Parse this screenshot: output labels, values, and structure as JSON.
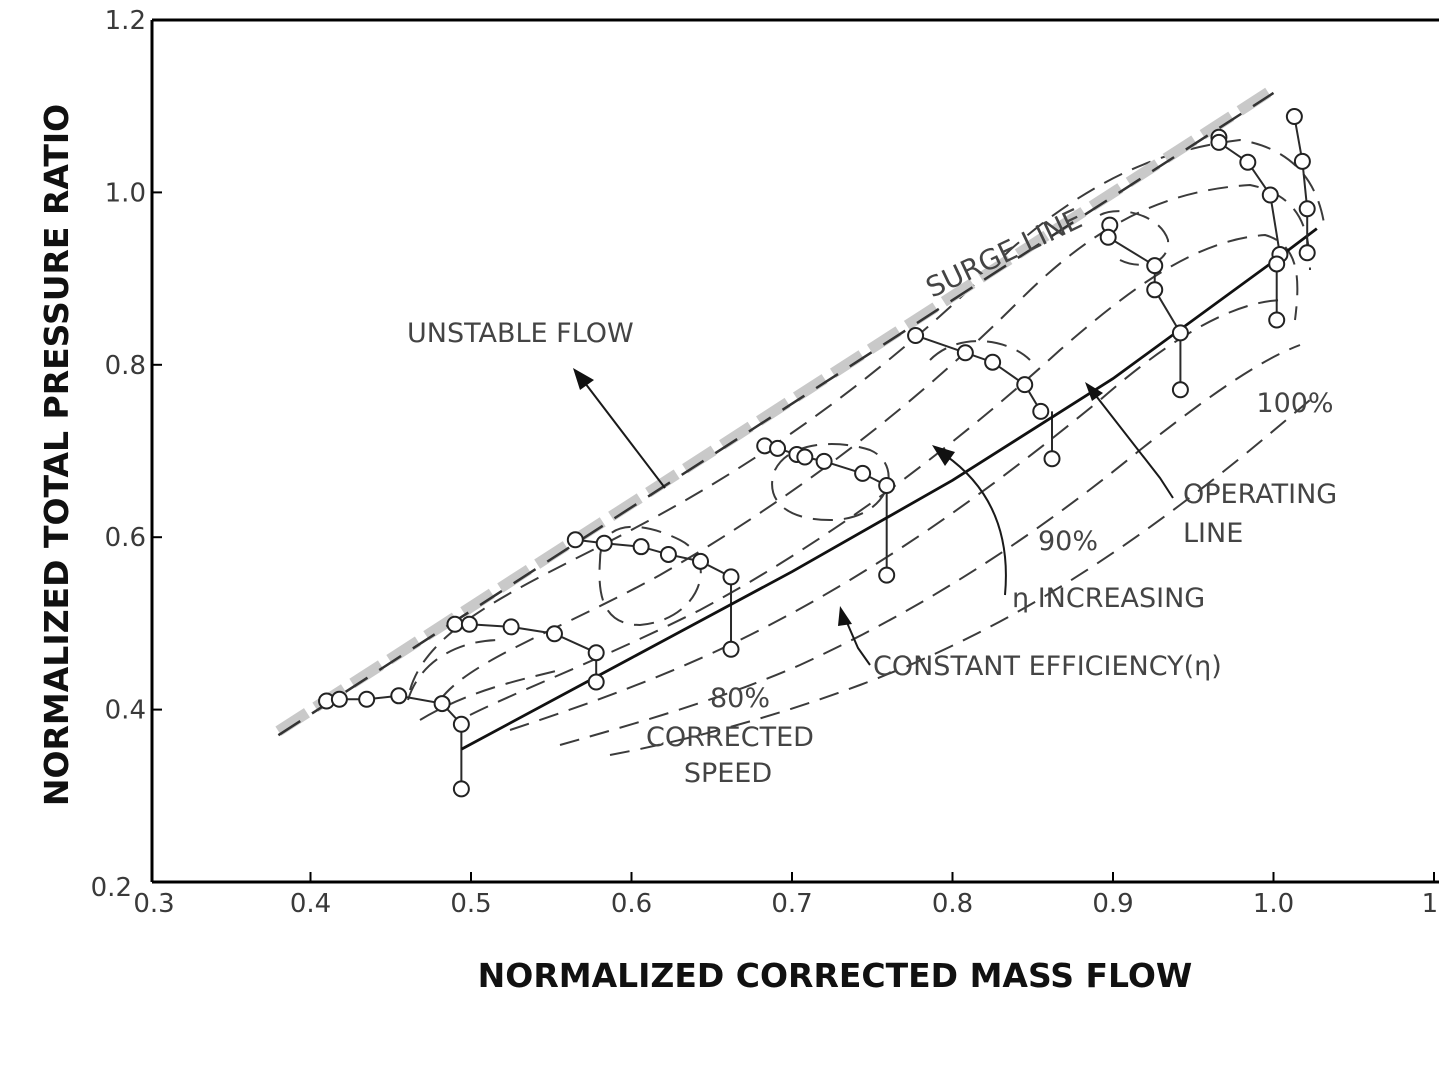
{
  "chart_data": {
    "type": "line",
    "title": "",
    "xlabel": "NORMALIZED CORRECTED MASS FLOW",
    "ylabel": "NORMALIZED TOTAL PRESSURE RATIO",
    "xlim": [
      0.3,
      1.1
    ],
    "ylim": [
      0.2,
      1.2
    ],
    "x_ticks": [
      {
        "value": 0.3,
        "label": "0.3"
      },
      {
        "value": 0.4,
        "label": "0.4"
      },
      {
        "value": 0.5,
        "label": "0.5"
      },
      {
        "value": 0.6,
        "label": "0.6"
      },
      {
        "value": 0.7,
        "label": "0.7"
      },
      {
        "value": 0.8,
        "label": "0.8"
      },
      {
        "value": 0.9,
        "label": "0.9"
      },
      {
        "value": 1.0,
        "label": "1.0"
      },
      {
        "value": 1.1,
        "label": "1."
      }
    ],
    "y_ticks": [
      {
        "value": 0.2,
        "label": "0.2"
      },
      {
        "value": 0.4,
        "label": "0.4"
      },
      {
        "value": 0.6,
        "label": "0.6"
      },
      {
        "value": 0.8,
        "label": "0.8"
      },
      {
        "value": 1.0,
        "label": "1.0"
      },
      {
        "value": 1.2,
        "label": "1.2"
      }
    ],
    "grid": false,
    "series": [
      {
        "type": "speed-line",
        "points": [
          [
            0.41,
            0.41
          ],
          [
            0.418,
            0.412
          ],
          [
            0.435,
            0.412
          ],
          [
            0.455,
            0.416
          ],
          [
            0.482,
            0.407
          ],
          [
            0.494,
            0.383
          ]
        ]
      },
      {
        "type": "speed-line",
        "points": [
          [
            0.49,
            0.499
          ],
          [
            0.499,
            0.499
          ],
          [
            0.525,
            0.496
          ],
          [
            0.552,
            0.488
          ],
          [
            0.578,
            0.466
          ]
        ]
      },
      {
        "type": "speed-line",
        "points": [
          [
            0.565,
            0.597
          ],
          [
            0.583,
            0.593
          ],
          [
            0.606,
            0.589
          ],
          [
            0.623,
            0.58
          ],
          [
            0.643,
            0.572
          ],
          [
            0.662,
            0.554
          ]
        ]
      },
      {
        "type": "speed-line",
        "points": [
          [
            0.683,
            0.706
          ],
          [
            0.691,
            0.703
          ],
          [
            0.703,
            0.696
          ],
          [
            0.708,
            0.693
          ],
          [
            0.72,
            0.688
          ],
          [
            0.744,
            0.674
          ],
          [
            0.759,
            0.66
          ]
        ]
      },
      {
        "type": "speed-line",
        "points": [
          [
            0.777,
            0.834
          ],
          [
            0.808,
            0.814
          ],
          [
            0.825,
            0.803
          ],
          [
            0.845,
            0.777
          ],
          [
            0.855,
            0.746
          ]
        ]
      },
      {
        "type": "speed-line",
        "points": [
          [
            0.898,
            0.962
          ],
          [
            0.897,
            0.948
          ],
          [
            0.926,
            0.915
          ],
          [
            0.926,
            0.887
          ],
          [
            0.942,
            0.837
          ]
        ]
      },
      {
        "type": "speed-line",
        "points": [
          [
            0.966,
            1.064
          ],
          [
            0.966,
            1.058
          ],
          [
            0.984,
            1.035
          ],
          [
            0.998,
            0.997
          ],
          [
            1.004,
            0.928
          ],
          [
            1.002,
            0.917
          ]
        ]
      },
      {
        "type": "speed-line",
        "points": [
          [
            1.013,
            1.088
          ],
          [
            1.018,
            1.036
          ],
          [
            1.021,
            0.981
          ],
          [
            1.021,
            0.93
          ]
        ]
      },
      {
        "type": "operating-line-points",
        "points": [
          [
            0.494,
            0.308
          ],
          [
            0.578,
            0.432
          ],
          [
            0.662,
            0.47
          ],
          [
            0.759,
            0.556
          ],
          [
            0.862,
            0.691
          ],
          [
            0.942,
            0.771
          ],
          [
            1.002,
            0.852
          ]
        ]
      },
      {
        "type": "surge-line",
        "points": [
          [
            0.38,
            0.375
          ],
          [
            1.0,
            1.12
          ]
        ]
      },
      {
        "type": "operating-line",
        "points": [
          [
            0.494,
            0.354
          ],
          [
            0.6,
            0.46
          ],
          [
            0.7,
            0.56
          ],
          [
            0.8,
            0.666
          ],
          [
            0.9,
            0.784
          ],
          [
            1.0,
            0.92
          ],
          [
            1.027,
            0.958
          ]
        ]
      }
    ],
    "annotations": {
      "surge_line": "SURGE LINE",
      "unstable_flow": "UNSTABLE FLOW",
      "operating_line_1": "OPERATING",
      "operating_line_2": "LINE",
      "eta_increasing": "η INCREASING",
      "constant_efficiency": "CONSTANT EFFICIENCY(η)",
      "speed_80": "80%",
      "corrected": "CORRECTED",
      "speed": "SPEED",
      "speed_90": "90%",
      "speed_100": "100%"
    }
  }
}
